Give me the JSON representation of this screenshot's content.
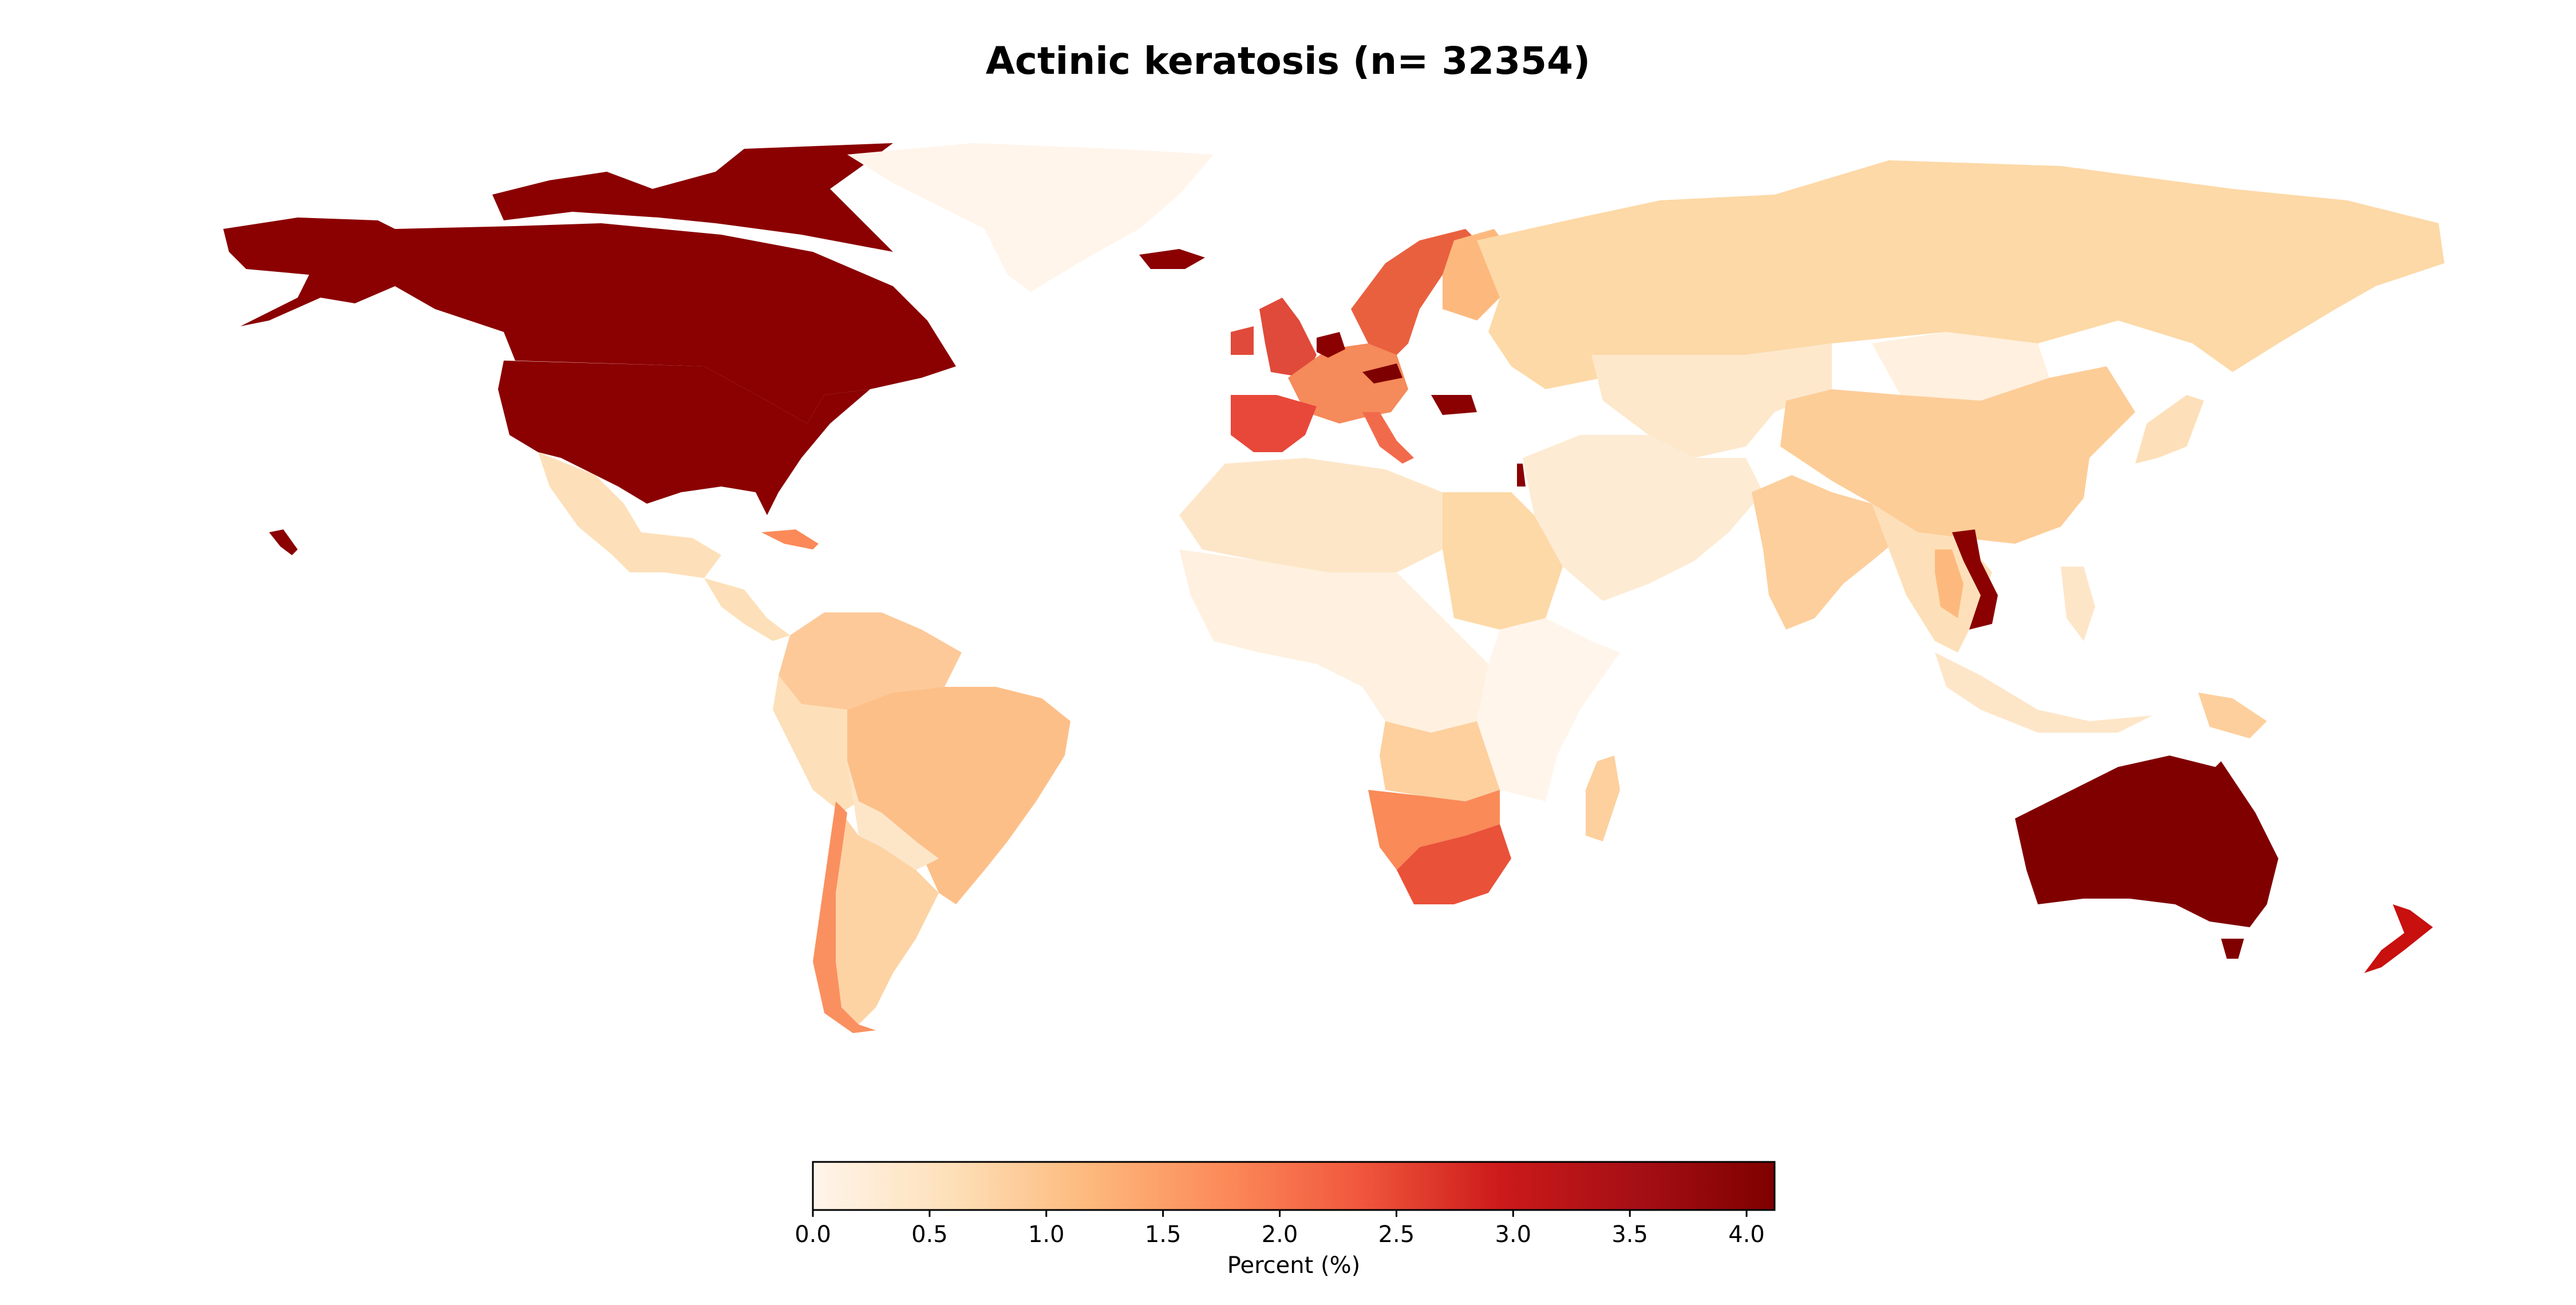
{
  "title": "Actinic keratosis (n= 32354)",
  "colorbar": {
    "label": "Percent (%)",
    "min": 0.0,
    "max": 4.12,
    "ticks": [
      {
        "value": 0.0,
        "label": "0.0"
      },
      {
        "value": 0.5,
        "label": "0.5"
      },
      {
        "value": 1.0,
        "label": "1.0"
      },
      {
        "value": 1.5,
        "label": "1.5"
      },
      {
        "value": 2.0,
        "label": "2.0"
      },
      {
        "value": 2.5,
        "label": "2.5"
      },
      {
        "value": 3.0,
        "label": "3.0"
      },
      {
        "value": 3.5,
        "label": "3.5"
      },
      {
        "value": 4.0,
        "label": "4.0"
      }
    ],
    "colormap": [
      "#fff5eb",
      "#fde0b9",
      "#fdb97d",
      "#fc8a59",
      "#f0563c",
      "#cc1a1a",
      "#a50f15",
      "#7f0000"
    ]
  },
  "regions": [
    {
      "name": "alaska",
      "color": "#8b0000"
    },
    {
      "name": "canada",
      "color": "#8b0000"
    },
    {
      "name": "arctic-islands",
      "color": "#8b0000"
    },
    {
      "name": "united-states",
      "color": "#8b0000"
    },
    {
      "name": "hawaii",
      "color": "#8b0000"
    },
    {
      "name": "greenland",
      "color": "#fff5eb"
    },
    {
      "name": "iceland",
      "color": "#8b0000"
    },
    {
      "name": "mexico",
      "color": "#fde0b9"
    },
    {
      "name": "central-america",
      "color": "#fde0b9"
    },
    {
      "name": "cuba",
      "color": "#fc8a59"
    },
    {
      "name": "colombia-venezuela",
      "color": "#fdc999"
    },
    {
      "name": "peru-ecuador",
      "color": "#fde0b9"
    },
    {
      "name": "brazil",
      "color": "#fdbf88"
    },
    {
      "name": "bolivia-paraguay",
      "color": "#fde6c8"
    },
    {
      "name": "argentina",
      "color": "#fdd3a4"
    },
    {
      "name": "chile",
      "color": "#fa9060"
    },
    {
      "name": "uk-ireland",
      "color": "#e04a3a"
    },
    {
      "name": "scandinavia",
      "color": "#e9603f"
    },
    {
      "name": "finland",
      "color": "#fdb97d"
    },
    {
      "name": "western-europe",
      "color": "#f58a5a"
    },
    {
      "name": "netherlands-belgium",
      "color": "#8b0000"
    },
    {
      "name": "austria",
      "color": "#7f0000"
    },
    {
      "name": "spain-portugal",
      "color": "#e8483a"
    },
    {
      "name": "italy",
      "color": "#f26a4c"
    },
    {
      "name": "bulgaria",
      "color": "#8b0000"
    },
    {
      "name": "russia",
      "color": "#fdd9a7"
    },
    {
      "name": "kazakhstan-central-asia",
      "color": "#fde8cc"
    },
    {
      "name": "mongolia",
      "color": "#fff0df"
    },
    {
      "name": "china",
      "color": "#fdcd98"
    },
    {
      "name": "middle-east",
      "color": "#fdebd3"
    },
    {
      "name": "israel",
      "color": "#8b0000"
    },
    {
      "name": "india",
      "color": "#fdcf9c"
    },
    {
      "name": "southeast-asia",
      "color": "#fde0b9"
    },
    {
      "name": "vietnam",
      "color": "#8b0000"
    },
    {
      "name": "thailand",
      "color": "#fdb97d"
    },
    {
      "name": "japan",
      "color": "#fde0b9"
    },
    {
      "name": "indonesia",
      "color": "#fde6c8"
    },
    {
      "name": "philippines",
      "color": "#fde6c8"
    },
    {
      "name": "papua-new-guinea",
      "color": "#fdcf9c"
    },
    {
      "name": "north-africa",
      "color": "#fde6c8"
    },
    {
      "name": "egypt-sudan",
      "color": "#fdd9a7"
    },
    {
      "name": "west-central-africa",
      "color": "#fff0df"
    },
    {
      "name": "east-africa",
      "color": "#fff5eb"
    },
    {
      "name": "angola-zambia",
      "color": "#fdd09e"
    },
    {
      "name": "namibia-botswana",
      "color": "#fa8a58"
    },
    {
      "name": "south-africa",
      "color": "#ea5139"
    },
    {
      "name": "madagascar",
      "color": "#fdd09e"
    },
    {
      "name": "australia",
      "color": "#800000"
    },
    {
      "name": "tasmania",
      "color": "#800000"
    },
    {
      "name": "new-zealand",
      "color": "#c8100f"
    }
  ]
}
